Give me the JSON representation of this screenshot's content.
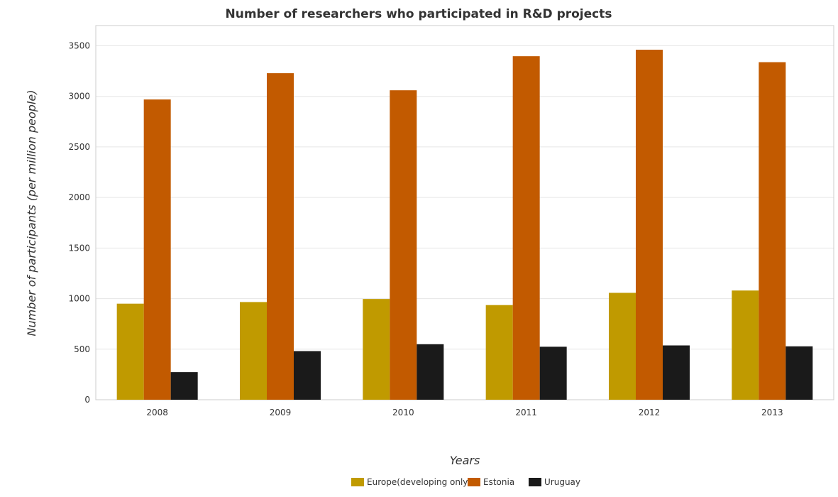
{
  "chart_data": {
    "type": "bar",
    "title": "Number of researchers who participated in R&D projects",
    "xlabel": "Years",
    "ylabel": "Number of participants (per million people)",
    "categories": [
      "2008",
      "2009",
      "2010",
      "2011",
      "2012",
      "2013"
    ],
    "series": [
      {
        "name": "Europe(developing only)",
        "color": "#c09a00",
        "values": [
          950,
          966,
          996,
          936,
          1057,
          1080
        ]
      },
      {
        "name": "Estonia",
        "color": "#c25a00",
        "values": [
          2969,
          3229,
          3060,
          3397,
          3461,
          3338
        ]
      },
      {
        "name": "Uruguay",
        "color": "#1a1a1a",
        "values": [
          273,
          481,
          549,
          524,
          537,
          528
        ]
      }
    ],
    "ylim": [
      0,
      3700
    ],
    "yticks": [
      0,
      500,
      1000,
      1500,
      2000,
      2500,
      3000,
      3500
    ],
    "grid": true,
    "legend_position": "bottom-center"
  }
}
